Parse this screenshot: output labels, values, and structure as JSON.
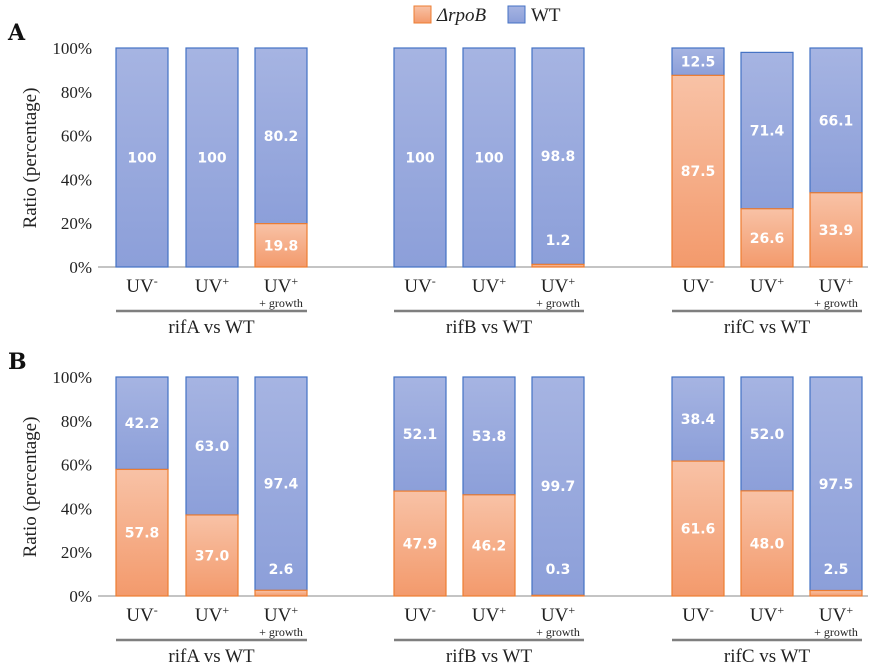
{
  "legend": {
    "items": [
      {
        "label": "ΔrpoB",
        "color": "#f4a37a"
      },
      {
        "label": "WT",
        "color": "#8fa3dc"
      }
    ]
  },
  "colors": {
    "mutant_fill": "#f4a57b",
    "mutant_stroke": "#ed7d31",
    "wt_fill": "#9aabdd",
    "wt_stroke": "#4472c4",
    "axis": "#888888",
    "group_line": "#7f7f7f"
  },
  "panels": {
    "A": {
      "letter": "A",
      "ylabel": "Ratio (percentage)"
    },
    "B": {
      "letter": "B",
      "ylabel": "Ratio (percentage)"
    }
  },
  "chart_data": [
    {
      "type": "bar",
      "stacked": true,
      "panel": "A",
      "ylabel": "Ratio (percentage)",
      "ylim": [
        0,
        100
      ],
      "yticks": [
        "0%",
        "20%",
        "40%",
        "60%",
        "80%",
        "100%"
      ],
      "groups": [
        "rifA vs WT",
        "rifB vs WT",
        "rifC vs WT"
      ],
      "categories": [
        "UV-",
        "UV+",
        "UV+ + growth",
        "UV-",
        "UV+",
        "UV+ + growth",
        "UV-",
        "UV+",
        "UV+ + growth"
      ],
      "series": [
        {
          "name": "ΔrpoB",
          "values": [
            0,
            0,
            19.8,
            0,
            0,
            1.2,
            87.5,
            26.6,
            33.9
          ],
          "labels": [
            "",
            "",
            "19.8",
            "",
            "",
            "1.2",
            "87.5",
            "26.6",
            "33.9"
          ]
        },
        {
          "name": "WT",
          "values": [
            100,
            100,
            80.2,
            100,
            100,
            98.8,
            12.5,
            71.4,
            66.1
          ],
          "labels": [
            "100",
            "100",
            "80.2",
            "100",
            "100",
            "98.8",
            "12.5",
            "71.4",
            "66.1"
          ]
        }
      ]
    },
    {
      "type": "bar",
      "stacked": true,
      "panel": "B",
      "ylabel": "Ratio (percentage)",
      "ylim": [
        0,
        100
      ],
      "yticks": [
        "0%",
        "20%",
        "40%",
        "60%",
        "80%",
        "100%"
      ],
      "groups": [
        "rifA vs WT",
        "rifB vs WT",
        "rifC vs WT"
      ],
      "categories": [
        "UV-",
        "UV+",
        "UV+ + growth",
        "UV-",
        "UV+",
        "UV+ + growth",
        "UV-",
        "UV+",
        "UV+ + growth"
      ],
      "series": [
        {
          "name": "ΔrpoB",
          "values": [
            57.8,
            37.0,
            2.6,
            47.9,
            46.2,
            0.3,
            61.6,
            48.0,
            2.5
          ],
          "labels": [
            "57.8",
            "37.0",
            "2.6",
            "47.9",
            "46.2",
            "0.3",
            "61.6",
            "48.0",
            "2.5"
          ]
        },
        {
          "name": "WT",
          "values": [
            42.2,
            63.0,
            97.4,
            52.1,
            53.8,
            99.7,
            38.4,
            52.0,
            97.5
          ],
          "labels": [
            "42.2",
            "63.0",
            "97.4",
            "52.1",
            "53.8",
            "99.7",
            "38.4",
            "52.0",
            "97.5"
          ]
        }
      ]
    }
  ]
}
